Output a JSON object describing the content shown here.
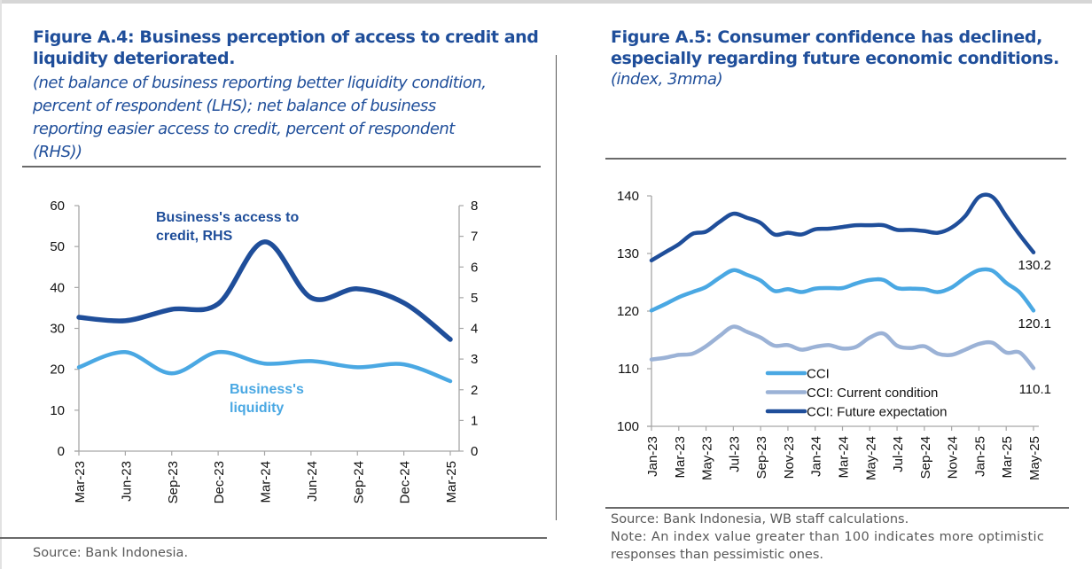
{
  "left_panel": {
    "title": "Figure A.4: Business perception of access to credit and liquidity deteriorated.",
    "title_line1": "Figure A.4: Business perception of access to credit and",
    "title_line2": "liquidity deteriorated.",
    "subtitle_lines": [
      "(net balance of business reporting better liquidity condition,",
      "percent of respondent (LHS); net balance of business",
      "reporting easier access to credit, percent of respondent",
      "(RHS))"
    ],
    "source": "Source:  Bank Indonesia."
  },
  "right_panel": {
    "title_line1": "Figure A.5: Consumer confidence has declined,",
    "title_line2": "especially regarding future economic conditions.",
    "subtitle": "(index, 3mma)",
    "source": "Source: Bank Indonesia, WB staff calculations.",
    "note_line1": "Note: An index value greater than 100 indicates more optimistic",
    "note_line2": "responses than pessimistic ones."
  },
  "colors": {
    "dark_blue": "#1f4e9a",
    "light_blue": "#4aa8e3",
    "grey_blue": "#9bb2d6",
    "axis": "#a6a6a6"
  },
  "chart_data": [
    {
      "type": "line",
      "title": "Business perception of access to credit and liquidity",
      "categories": [
        "Mar-23",
        "Jun-23",
        "Sep-23",
        "Dec-23",
        "Mar-24",
        "Jun-24",
        "Sep-24",
        "Dec-24",
        "Mar-25"
      ],
      "y_left": {
        "range": [
          0,
          60
        ],
        "ticks": [
          0,
          10,
          20,
          30,
          40,
          50,
          60
        ]
      },
      "y_right": {
        "range": [
          0,
          8
        ],
        "ticks": [
          0,
          1,
          2,
          3,
          4,
          5,
          6,
          7,
          8
        ]
      },
      "grid": false,
      "series": [
        {
          "name": "Business's access to credit, RHS",
          "label_lines": [
            "Business's access to",
            "credit, RHS"
          ],
          "axis": "right",
          "color": "#1f4e9a",
          "values": [
            4.36,
            4.25,
            4.62,
            4.8,
            6.82,
            5.0,
            5.29,
            4.83,
            3.64
          ]
        },
        {
          "name": "Business's liquidity",
          "label_lines": [
            "Business's",
            "liquidity"
          ],
          "axis": "left",
          "color": "#4aa8e3",
          "values": [
            20.5,
            24.2,
            19.0,
            24.2,
            21.4,
            22.0,
            20.5,
            21.2,
            17.1
          ]
        }
      ]
    },
    {
      "type": "line",
      "title": "Consumer confidence (index, 3mma)",
      "x": [
        "Jan-23",
        "Feb-23",
        "Mar-23",
        "Apr-23",
        "May-23",
        "Jun-23",
        "Jul-23",
        "Aug-23",
        "Sep-23",
        "Oct-23",
        "Nov-23",
        "Dec-23",
        "Jan-24",
        "Feb-24",
        "Mar-24",
        "Apr-24",
        "May-24",
        "Jun-24",
        "Jul-24",
        "Aug-24",
        "Sep-24",
        "Oct-24",
        "Nov-24",
        "Dec-24",
        "Jan-25",
        "Feb-25",
        "Mar-25",
        "Apr-25",
        "May-25"
      ],
      "tick_labels": [
        "Jan-23",
        "Mar-23",
        "May-23",
        "Jul-23",
        "Sep-23",
        "Nov-23",
        "Jan-24",
        "Mar-24",
        "May-24",
        "Jul-24",
        "Sep-24",
        "Nov-24",
        "Jan-25",
        "Mar-25",
        "May-25"
      ],
      "y": {
        "range": [
          100,
          140
        ],
        "ticks": [
          100,
          110,
          120,
          130,
          140
        ]
      },
      "grid": false,
      "legend": {
        "placement": "bottom-center-inside"
      },
      "series": [
        {
          "name": "CCI",
          "color": "#4aa8e3",
          "end_label": "120.1",
          "values": [
            120.1,
            121.2,
            122.4,
            123.3,
            124.2,
            125.8,
            127.1,
            126.3,
            125.3,
            123.5,
            123.8,
            123.3,
            123.9,
            124.0,
            124.0,
            124.8,
            125.4,
            125.4,
            124.0,
            123.9,
            123.8,
            123.3,
            124.1,
            125.8,
            127.1,
            127.0,
            124.9,
            123.2,
            120.1
          ]
        },
        {
          "name": "CCI: Current condition",
          "color": "#9bb2d6",
          "end_label": "110.1",
          "values": [
            111.6,
            111.9,
            112.4,
            112.6,
            113.9,
            115.7,
            117.3,
            116.4,
            115.4,
            114.0,
            114.1,
            113.3,
            113.8,
            114.1,
            113.5,
            113.8,
            115.4,
            116.1,
            114.0,
            113.6,
            113.9,
            112.6,
            112.4,
            113.3,
            114.3,
            114.5,
            112.8,
            112.8,
            110.1
          ]
        },
        {
          "name": "CCI: Future expectation",
          "color": "#1f4e9a",
          "end_label": "130.2",
          "values": [
            128.8,
            130.2,
            131.6,
            133.4,
            133.8,
            135.5,
            136.9,
            136.2,
            135.3,
            133.3,
            133.6,
            133.3,
            134.2,
            134.3,
            134.6,
            134.9,
            134.9,
            134.9,
            134.1,
            134.1,
            133.9,
            133.6,
            134.5,
            136.5,
            139.8,
            139.8,
            136.5,
            133.2,
            130.2
          ]
        }
      ]
    }
  ]
}
